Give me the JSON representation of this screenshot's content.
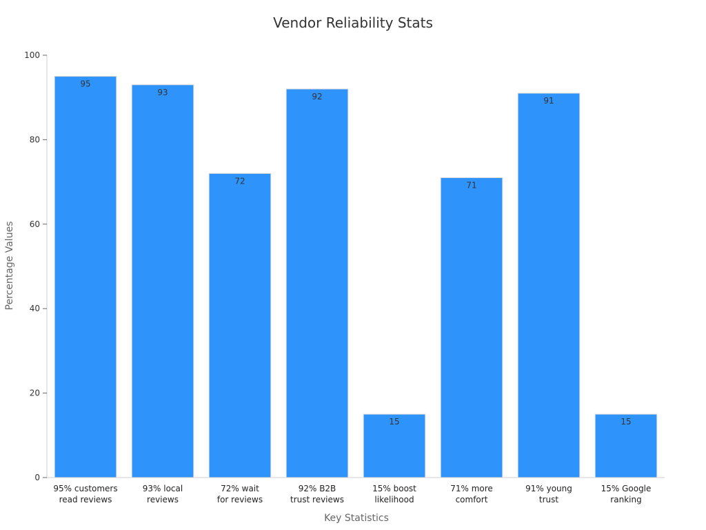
{
  "chart_data": {
    "type": "bar",
    "title": "Vendor Reliability Stats",
    "xlabel": "Key Statistics",
    "ylabel": "Percentage Values",
    "categories": [
      [
        "95% customers",
        "read reviews"
      ],
      [
        "93% local",
        "reviews"
      ],
      [
        "72% wait",
        "for reviews"
      ],
      [
        "92% B2B",
        "trust reviews"
      ],
      [
        "15% boost",
        "likelihood"
      ],
      [
        "71% more",
        "comfort"
      ],
      [
        "91% young",
        "trust"
      ],
      [
        "15% Google",
        "ranking"
      ]
    ],
    "values": [
      95,
      93,
      72,
      92,
      15,
      71,
      91,
      15
    ],
    "ylim": [
      0,
      100
    ],
    "yticks": [
      0,
      20,
      40,
      60,
      80,
      100
    ],
    "bar_color": "#2e93fa",
    "grid": false,
    "data_labels": true
  }
}
